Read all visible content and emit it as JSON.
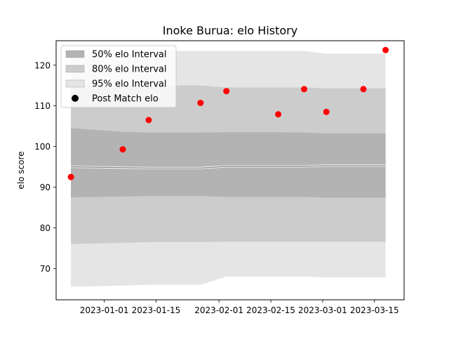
{
  "chart_data": {
    "type": "area",
    "title": "Inoke Burua: elo History",
    "xlabel": "",
    "ylabel": "elo score",
    "xlim": [
      "2022-12-19",
      "2023-03-23"
    ],
    "ylim": [
      62.3,
      126.0
    ],
    "grid": false,
    "legend_position": "top-left",
    "x_ticks": [
      "2023-01-01",
      "2023-01-15",
      "2023-02-01",
      "2023-02-15",
      "2023-03-01",
      "2023-03-15"
    ],
    "y_ticks": [
      70,
      80,
      90,
      100,
      110,
      120
    ],
    "colors": {
      "band_50": "#b3b3b3",
      "band_80": "#cccccc",
      "band_95": "#e5e5e5",
      "mean_line": "#7f7f7f",
      "points": "#ff0000"
    },
    "bands": {
      "x": [
        "2022-12-23",
        "2023-01-06",
        "2023-01-13",
        "2023-01-27",
        "2023-02-03",
        "2023-02-17",
        "2023-02-24",
        "2023-03-02",
        "2023-03-12",
        "2023-03-18"
      ],
      "interval_95": {
        "low": [
          65.5,
          65.8,
          66.0,
          66.0,
          68.0,
          68.0,
          68.0,
          67.8,
          67.8,
          67.8
        ],
        "high": [
          122.5,
          123.0,
          123.5,
          123.5,
          123.5,
          123.5,
          123.5,
          122.8,
          122.8,
          122.8
        ]
      },
      "interval_80": {
        "low": [
          76.0,
          76.3,
          76.5,
          76.5,
          76.6,
          76.6,
          76.6,
          76.6,
          76.6,
          76.6
        ],
        "high": [
          115.0,
          115.0,
          115.0,
          115.0,
          114.5,
          114.5,
          114.5,
          114.3,
          114.3,
          114.3
        ]
      },
      "interval_50": {
        "low": [
          87.5,
          87.7,
          87.8,
          87.8,
          87.6,
          87.6,
          87.6,
          87.4,
          87.4,
          87.4
        ],
        "high": [
          104.5,
          103.6,
          103.4,
          103.4,
          103.5,
          103.5,
          103.4,
          103.2,
          103.2,
          103.2
        ]
      },
      "mean": [
        95.0,
        94.8,
        94.7,
        94.7,
        95.1,
        95.1,
        95.1,
        95.3,
        95.3,
        95.3
      ]
    },
    "series": [
      {
        "name": "Post Match elo",
        "type": "scatter",
        "x": [
          "2022-12-23",
          "2023-01-06",
          "2023-01-13",
          "2023-01-27",
          "2023-02-03",
          "2023-02-17",
          "2023-02-24",
          "2023-03-02",
          "2023-03-12",
          "2023-03-18"
        ],
        "values": [
          92.5,
          99.3,
          106.5,
          110.7,
          113.6,
          107.9,
          114.1,
          108.5,
          114.1,
          123.7
        ]
      }
    ],
    "legend": [
      {
        "label": "50% elo Interval",
        "kind": "patch",
        "color": "#b3b3b3"
      },
      {
        "label": "80% elo Interval",
        "kind": "patch",
        "color": "#cccccc"
      },
      {
        "label": "95% elo Interval",
        "kind": "patch",
        "color": "#e5e5e5"
      },
      {
        "label": "Post Match elo",
        "kind": "marker",
        "color": "#000000"
      }
    ]
  }
}
